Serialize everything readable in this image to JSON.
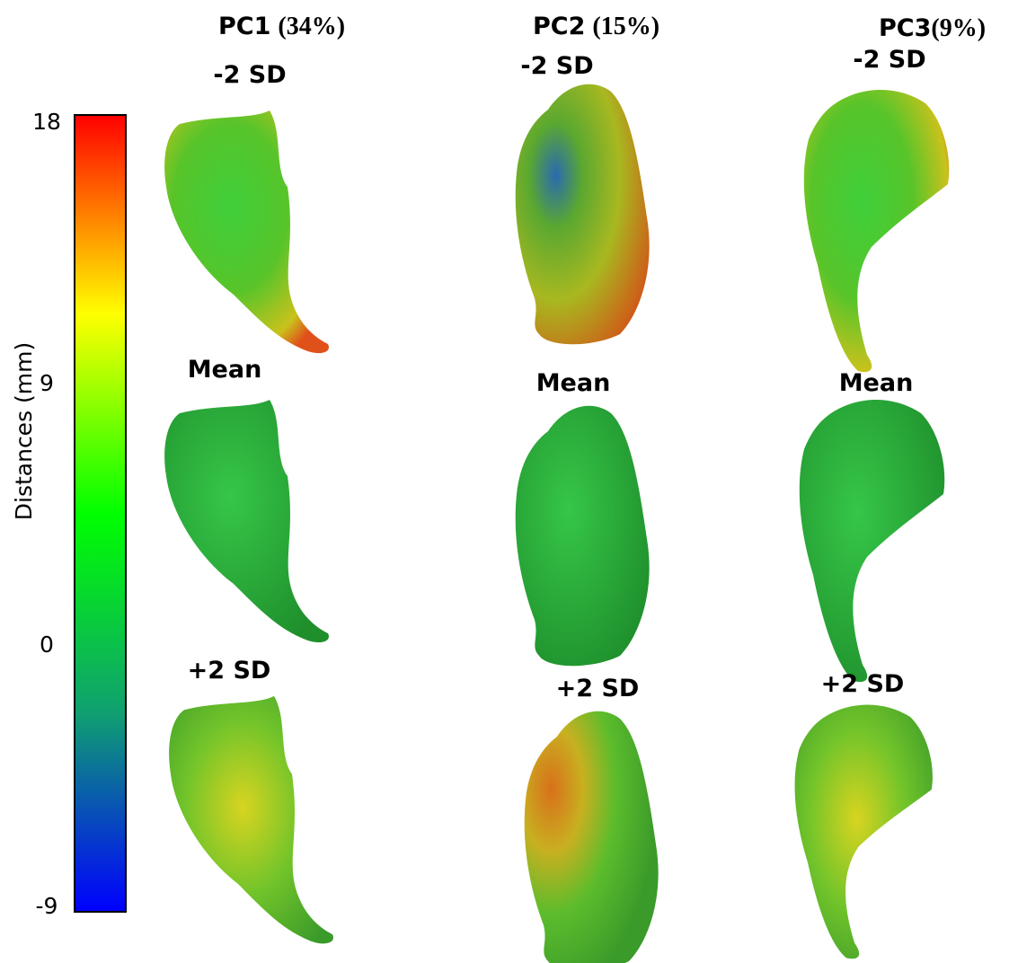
{
  "colorbar": {
    "label": "Distances (mm)",
    "range": [
      -9,
      18
    ],
    "ticks": [
      18,
      9,
      0,
      -9
    ],
    "colors": [
      "#0000ff",
      "#10a070",
      "#00ff00",
      "#ffff00",
      "#ff0000"
    ]
  },
  "columns": [
    {
      "title": "PC1",
      "variance": "(34%)",
      "rows": [
        "-2 SD",
        "Mean",
        "+2 SD"
      ]
    },
    {
      "title": "PC2",
      "variance": "(15%)",
      "rows": [
        "-2 SD",
        "Mean",
        "+2 SD"
      ]
    },
    {
      "title": "PC3",
      "variance": "(9%)",
      "rows": [
        "-2 SD",
        "Mean",
        "+2 SD"
      ]
    }
  ]
}
